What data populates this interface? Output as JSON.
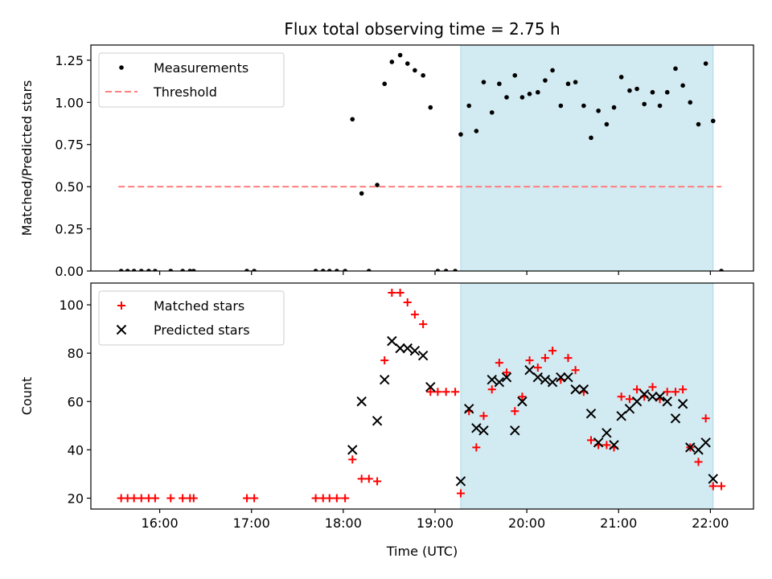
{
  "chart_data": {
    "title": "Flux total observing time = 2.75 h",
    "xlabel": "Time (UTC)",
    "x_unit": "hours UTC",
    "xlim": [
      15.25,
      22.47
    ],
    "xticks": [
      {
        "value": 16,
        "label": "16:00"
      },
      {
        "value": 17,
        "label": "17:00"
      },
      {
        "value": 18,
        "label": "18:00"
      },
      {
        "value": 19,
        "label": "19:00"
      },
      {
        "value": 20,
        "label": "20:00"
      },
      {
        "value": 21,
        "label": "21:00"
      },
      {
        "value": 22,
        "label": "22:00"
      }
    ],
    "observing_span": [
      19.28,
      22.03
    ],
    "observing_span_color": "#add8e6",
    "panels": [
      {
        "name": "ratio",
        "type": "scatter",
        "ylabel": "Matched/Predicted stars",
        "ylim": [
          0,
          1.34
        ],
        "yticks": [
          {
            "value": 0,
            "label": "0.00"
          },
          {
            "value": 0.25,
            "label": "0.25"
          },
          {
            "value": 0.5,
            "label": "0.50"
          },
          {
            "value": 0.75,
            "label": "0.75"
          },
          {
            "value": 1.0,
            "label": "1.00"
          },
          {
            "value": 1.25,
            "label": "1.25"
          }
        ],
        "legend_position": "top-left",
        "series": [
          {
            "name": "Measurements",
            "marker": "dot",
            "color": "#000000",
            "points": [
              [
                15.58,
                0
              ],
              [
                15.65,
                0
              ],
              [
                15.72,
                0
              ],
              [
                15.8,
                0
              ],
              [
                15.88,
                0
              ],
              [
                15.95,
                0
              ],
              [
                16.12,
                0
              ],
              [
                16.25,
                0
              ],
              [
                16.33,
                0
              ],
              [
                16.37,
                0
              ],
              [
                16.95,
                0
              ],
              [
                17.03,
                0
              ],
              [
                17.7,
                0
              ],
              [
                17.78,
                0
              ],
              [
                17.85,
                0
              ],
              [
                17.93,
                0
              ],
              [
                18.02,
                0
              ],
              [
                18.1,
                0.9
              ],
              [
                18.2,
                0.46
              ],
              [
                18.28,
                0
              ],
              [
                18.37,
                0.51
              ],
              [
                18.45,
                1.11
              ],
              [
                18.53,
                1.24
              ],
              [
                18.62,
                1.28
              ],
              [
                18.7,
                1.23
              ],
              [
                18.78,
                1.19
              ],
              [
                18.87,
                1.16
              ],
              [
                18.95,
                0.97
              ],
              [
                19.03,
                0
              ],
              [
                19.12,
                0
              ],
              [
                19.22,
                0
              ],
              [
                19.28,
                0.81
              ],
              [
                19.37,
                0.98
              ],
              [
                19.45,
                0.83
              ],
              [
                19.53,
                1.12
              ],
              [
                19.62,
                0.94
              ],
              [
                19.7,
                1.11
              ],
              [
                19.78,
                1.03
              ],
              [
                19.87,
                1.16
              ],
              [
                19.95,
                1.03
              ],
              [
                20.03,
                1.05
              ],
              [
                20.12,
                1.06
              ],
              [
                20.2,
                1.13
              ],
              [
                20.28,
                1.19
              ],
              [
                20.37,
                0.98
              ],
              [
                20.45,
                1.11
              ],
              [
                20.53,
                1.12
              ],
              [
                20.62,
                0.98
              ],
              [
                20.7,
                0.79
              ],
              [
                20.78,
                0.95
              ],
              [
                20.87,
                0.87
              ],
              [
                20.95,
                0.97
              ],
              [
                21.03,
                1.15
              ],
              [
                21.12,
                1.07
              ],
              [
                21.2,
                1.08
              ],
              [
                21.28,
                0.99
              ],
              [
                21.37,
                1.06
              ],
              [
                21.45,
                0.98
              ],
              [
                21.53,
                1.06
              ],
              [
                21.62,
                1.2
              ],
              [
                21.7,
                1.1
              ],
              [
                21.78,
                1.0
              ],
              [
                21.87,
                0.87
              ],
              [
                21.95,
                1.23
              ],
              [
                22.03,
                0.89
              ],
              [
                22.12,
                0
              ]
            ]
          },
          {
            "name": "Threshold",
            "marker": "dashed-line",
            "color": "#ff7f7f",
            "points": [
              [
                15.55,
                0.5
              ],
              [
                22.12,
                0.5
              ]
            ]
          }
        ]
      },
      {
        "name": "counts",
        "type": "scatter",
        "ylabel": "Count",
        "ylim": [
          15.5,
          109
        ],
        "yticks": [
          {
            "value": 20,
            "label": "20"
          },
          {
            "value": 40,
            "label": "40"
          },
          {
            "value": 60,
            "label": "60"
          },
          {
            "value": 80,
            "label": "80"
          },
          {
            "value": 100,
            "label": "100"
          }
        ],
        "legend_position": "top-left",
        "series": [
          {
            "name": "Matched stars",
            "marker": "plus",
            "color": "#ff0000",
            "points": [
              [
                15.58,
                20
              ],
              [
                15.65,
                20
              ],
              [
                15.72,
                20
              ],
              [
                15.8,
                20
              ],
              [
                15.88,
                20
              ],
              [
                15.95,
                20
              ],
              [
                16.12,
                20
              ],
              [
                16.25,
                20
              ],
              [
                16.33,
                20
              ],
              [
                16.37,
                20
              ],
              [
                16.95,
                20
              ],
              [
                17.03,
                20
              ],
              [
                17.7,
                20
              ],
              [
                17.78,
                20
              ],
              [
                17.85,
                20
              ],
              [
                17.93,
                20
              ],
              [
                18.02,
                20
              ],
              [
                18.1,
                36
              ],
              [
                18.2,
                28
              ],
              [
                18.28,
                28
              ],
              [
                18.37,
                27
              ],
              [
                18.45,
                77
              ],
              [
                18.53,
                105
              ],
              [
                18.62,
                105
              ],
              [
                18.7,
                101
              ],
              [
                18.78,
                96
              ],
              [
                18.87,
                92
              ],
              [
                18.95,
                64
              ],
              [
                19.03,
                64
              ],
              [
                19.12,
                64
              ],
              [
                19.22,
                64
              ],
              [
                19.28,
                22
              ],
              [
                19.37,
                56
              ],
              [
                19.45,
                41
              ],
              [
                19.53,
                54
              ],
              [
                19.62,
                65
              ],
              [
                19.7,
                76
              ],
              [
                19.78,
                72
              ],
              [
                19.87,
                56
              ],
              [
                19.95,
                62
              ],
              [
                20.03,
                77
              ],
              [
                20.12,
                74
              ],
              [
                20.2,
                78
              ],
              [
                20.28,
                81
              ],
              [
                20.37,
                69
              ],
              [
                20.45,
                78
              ],
              [
                20.53,
                73
              ],
              [
                20.62,
                64
              ],
              [
                20.7,
                44
              ],
              [
                20.78,
                42
              ],
              [
                20.87,
                42
              ],
              [
                20.95,
                41
              ],
              [
                21.03,
                62
              ],
              [
                21.12,
                61
              ],
              [
                21.2,
                65
              ],
              [
                21.28,
                62
              ],
              [
                21.37,
                66
              ],
              [
                21.45,
                61
              ],
              [
                21.53,
                64
              ],
              [
                21.62,
                64
              ],
              [
                21.7,
                65
              ],
              [
                21.78,
                41
              ],
              [
                21.87,
                35
              ],
              [
                21.95,
                53
              ],
              [
                22.03,
                25
              ],
              [
                22.12,
                25
              ]
            ]
          },
          {
            "name": "Predicted stars",
            "marker": "x",
            "color": "#000000",
            "points": [
              [
                18.1,
                40
              ],
              [
                18.2,
                60
              ],
              [
                18.37,
                52
              ],
              [
                18.45,
                69
              ],
              [
                18.53,
                85
              ],
              [
                18.62,
                82
              ],
              [
                18.7,
                82
              ],
              [
                18.78,
                81
              ],
              [
                18.87,
                79
              ],
              [
                18.95,
                66
              ],
              [
                19.28,
                27
              ],
              [
                19.37,
                57
              ],
              [
                19.45,
                49
              ],
              [
                19.53,
                48
              ],
              [
                19.62,
                69
              ],
              [
                19.7,
                68
              ],
              [
                19.78,
                70
              ],
              [
                19.87,
                48
              ],
              [
                19.95,
                60
              ],
              [
                20.03,
                73
              ],
              [
                20.12,
                70
              ],
              [
                20.2,
                69
              ],
              [
                20.28,
                68
              ],
              [
                20.37,
                70
              ],
              [
                20.45,
                70
              ],
              [
                20.53,
                65
              ],
              [
                20.62,
                65
              ],
              [
                20.7,
                55
              ],
              [
                20.78,
                43
              ],
              [
                20.87,
                47
              ],
              [
                20.95,
                42
              ],
              [
                21.03,
                54
              ],
              [
                21.12,
                57
              ],
              [
                21.2,
                60
              ],
              [
                21.28,
                63
              ],
              [
                21.37,
                62
              ],
              [
                21.45,
                62
              ],
              [
                21.53,
                60
              ],
              [
                21.62,
                53
              ],
              [
                21.7,
                59
              ],
              [
                21.78,
                41
              ],
              [
                21.87,
                40
              ],
              [
                21.95,
                43
              ],
              [
                22.03,
                28
              ]
            ]
          }
        ]
      }
    ]
  }
}
